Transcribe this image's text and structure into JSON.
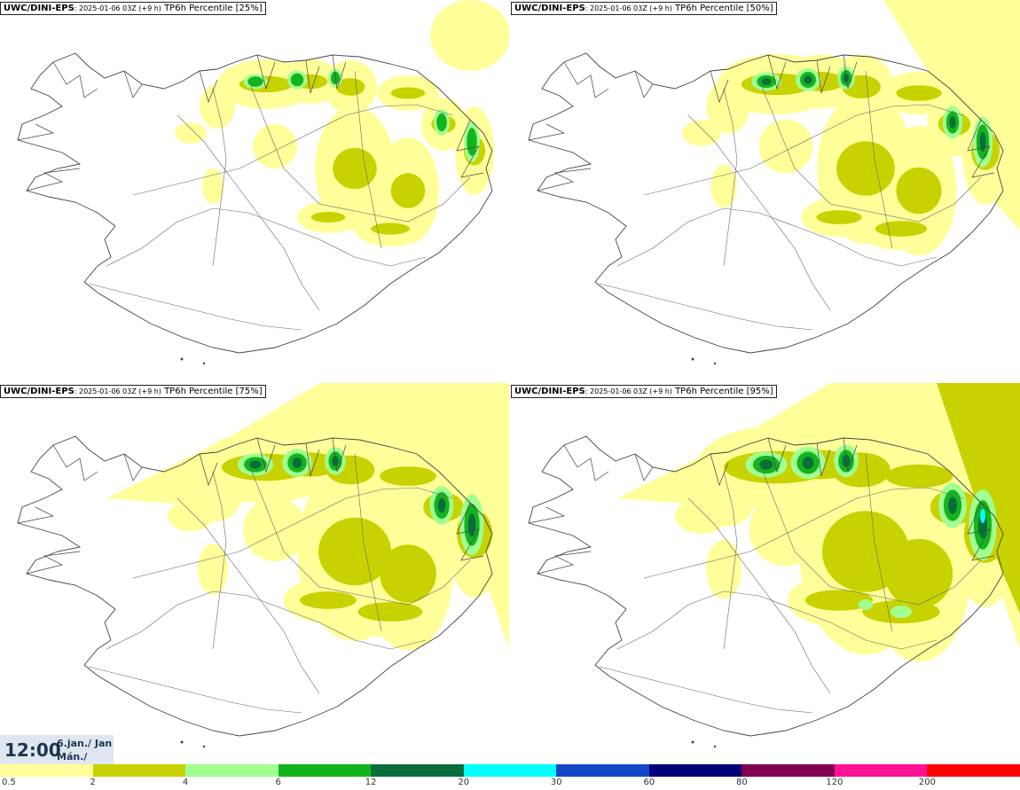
{
  "panels": [
    {
      "model": "UWC/DINI-EPS",
      "run": ": 2025-01-06 03Z (+9 h)",
      "field": " TP6h Percentile [25%]",
      "level": 0
    },
    {
      "model": "UWC/DINI-EPS",
      "run": ": 2025-01-06 03Z (+9 h)",
      "field": " TP6h Percentile [50%]",
      "level": 1
    },
    {
      "model": "UWC/DINI-EPS",
      "run": ": 2025-01-06 03Z (+9 h)",
      "field": " TP6h Percentile [75%]",
      "level": 2
    },
    {
      "model": "UWC/DINI-EPS",
      "run": ": 2025-01-06 03Z (+9 h)",
      "field": " TP6h Percentile [95%]",
      "level": 3
    }
  ],
  "valid_time": {
    "clock": "12:00",
    "date_line1": "6.jan./ Jan",
    "date_line2": "Mán./ Mon"
  },
  "legend": {
    "colors": [
      "#ffff9a",
      "#c8d200",
      "#a0ff90",
      "#14b41e",
      "#0a6e3c",
      "#00ffff",
      "#1446c8",
      "#000078",
      "#820050",
      "#ff1496",
      "#ff0000"
    ],
    "labels": [
      "0.5",
      "2",
      "4",
      "6",
      "12",
      "20",
      "30",
      "60",
      "80",
      "120",
      "200"
    ]
  }
}
